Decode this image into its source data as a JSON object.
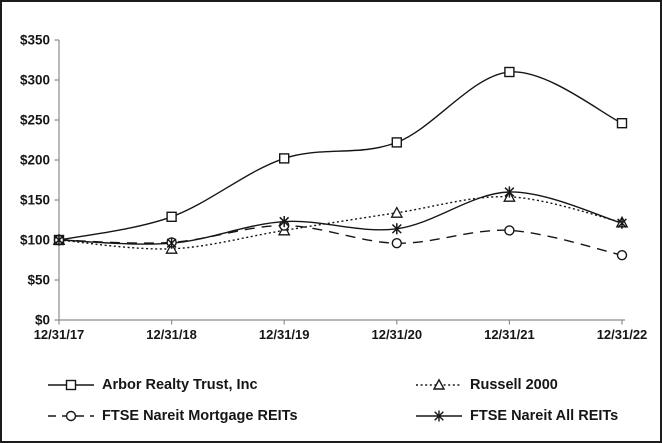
{
  "chart_data": {
    "type": "line",
    "title": "",
    "categories": [
      "12/31/17",
      "12/31/18",
      "12/31/19",
      "12/31/20",
      "12/31/21",
      "12/31/22"
    ],
    "series": [
      {
        "name": "Arbor Realty Trust, Inc",
        "marker": "square",
        "line": "solid",
        "values": [
          100,
          129,
          202,
          222,
          310,
          246
        ]
      },
      {
        "name": "Russell 2000",
        "marker": "triangle",
        "line": "dotted",
        "values": [
          100,
          89,
          112,
          134,
          154,
          122
        ]
      },
      {
        "name": "FTSE Nareit Mortgage REITs",
        "marker": "circle",
        "line": "dashed",
        "values": [
          100,
          97,
          118,
          96,
          112,
          81
        ]
      },
      {
        "name": "FTSE Nareit All REITs",
        "marker": "star",
        "line": "solid",
        "values": [
          100,
          96,
          123,
          114,
          160,
          121
        ]
      }
    ],
    "xlabel": "",
    "ylabel": "",
    "ylim": [
      0,
      350
    ],
    "ytick_step": 50,
    "ytick_labels": [
      "$0",
      "$50",
      "$100",
      "$150",
      "$200",
      "$250",
      "$300",
      "$350"
    ],
    "grid": false,
    "legend_position": "bottom"
  },
  "colors": {
    "line": "#161616",
    "axis": "#8c8c8c",
    "text": "#161616",
    "background": "#ffffff",
    "marker_fill": "#ffffff"
  }
}
